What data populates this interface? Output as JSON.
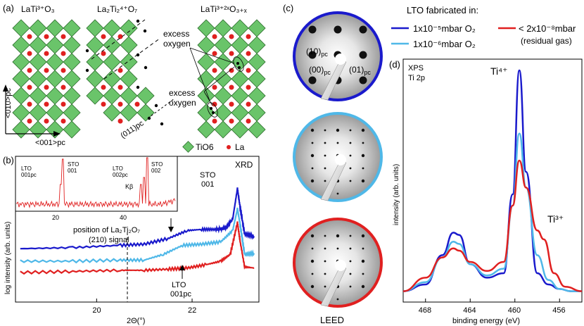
{
  "panels": {
    "a": {
      "label": "(a)",
      "struct1_title": "LaTi³⁺O₃",
      "struct2_title": "La₂Ti₂⁴⁺O₇",
      "struct3_title": "LaTi³⁺²ˣO₃₊ₓ",
      "excess_oxygen_top": [
        "excess",
        "oxygen"
      ],
      "excess_oxygen_bottom": [
        "excess",
        "oxygen"
      ],
      "axis_y": "<010>pc",
      "axis_x": "<001>pc",
      "plane": "(011)pc",
      "legend_tio6": "TiO6",
      "legend_la": "La"
    },
    "b": {
      "label": "(b)",
      "title": "XRD",
      "ylabel": "log intensity (arb. units)",
      "xlabel": "2Θ(°)",
      "annotations": {
        "sto_main": [
          "STO",
          "001"
        ],
        "position_note": [
          "position of La₂Ti₂O₇",
          "(210) signal"
        ],
        "lto": [
          "LTO",
          "001pc"
        ]
      },
      "inset": {
        "labels": [
          "LTO 001pc",
          "STO 001",
          "LTO 002pc",
          "Kβ",
          "STO 002"
        ],
        "x_ticks": [
          "20",
          "40"
        ]
      }
    },
    "c": {
      "label": "(c)",
      "leed_label": "LEED",
      "spot_labels": [
        "(10)pc",
        "(00)pc",
        "(01)pc"
      ],
      "legend_title": "LTO fabricated in:",
      "legend": [
        {
          "text": "1x10⁻⁵mbar O₂",
          "color": "#1a1acc"
        },
        {
          "text": "1x10⁻⁶mbar O₂",
          "color": "#4fb8e8"
        },
        {
          "text": "< 2x10⁻⁸mbar",
          "sub": "(residual gas)",
          "color": "#e02020"
        }
      ]
    },
    "d": {
      "label": "(d)",
      "method": [
        "XPS",
        "Ti 2p"
      ],
      "peak_ti4": "Ti⁴⁺",
      "peak_ti3": "Ti³⁺",
      "ylabel": "intensity (arb. units)",
      "xlabel": "binding energy (eV)"
    }
  },
  "chart_data": [
    {
      "type": "line",
      "panel": "b",
      "title": "XRD",
      "xlabel": "2Θ(°)",
      "ylabel": "log intensity (arb. units)",
      "xlim": [
        18.3,
        23.4
      ],
      "x_ticks": [
        20,
        22
      ],
      "log_y": true,
      "series": [
        {
          "name": "1x10⁻⁵mbar O₂",
          "color": "#1a1acc",
          "x": [
            18.4,
            19.5,
            20.5,
            21.0,
            21.5,
            21.9,
            22.2,
            22.5,
            22.7,
            22.85,
            22.95,
            23.0,
            23.1,
            23.3
          ],
          "y": [
            0.47,
            0.48,
            0.5,
            0.51,
            0.56,
            0.63,
            0.64,
            0.64,
            0.65,
            0.73,
            1.0,
            0.85,
            0.6,
            0.58
          ]
        },
        {
          "name": "1x10⁻⁶mbar O₂",
          "color": "#4fb8e8",
          "x": [
            18.4,
            19.5,
            20.5,
            21.0,
            21.4,
            21.8,
            22.2,
            22.6,
            22.85,
            22.95,
            23.0,
            23.1,
            23.3
          ],
          "y": [
            0.36,
            0.36,
            0.37,
            0.37,
            0.42,
            0.5,
            0.51,
            0.53,
            0.63,
            0.82,
            0.7,
            0.42,
            0.43
          ]
        },
        {
          "name": "< 2x10⁻⁸mbar",
          "color": "#e02020",
          "x": [
            18.4,
            19.5,
            20.5,
            21.0,
            21.5,
            21.9,
            22.3,
            22.6,
            22.8,
            22.95,
            23.0,
            23.1,
            23.3
          ],
          "y": [
            0.26,
            0.27,
            0.28,
            0.28,
            0.29,
            0.3,
            0.33,
            0.36,
            0.42,
            0.7,
            0.55,
            0.31,
            0.3
          ]
        }
      ]
    },
    {
      "type": "line",
      "panel": "d",
      "xlabel": "binding energy (eV)",
      "ylabel": "intensity (arb. units)",
      "xlim": [
        470,
        454
      ],
      "x_ticks": [
        468,
        464,
        460,
        456
      ],
      "series": [
        {
          "name": "1x10⁻⁵mbar O₂",
          "color": "#1a1acc",
          "x": [
            470,
            468,
            466.5,
            465.5,
            465.0,
            464.0,
            462.5,
            461.0,
            460.2,
            459.6,
            459.0,
            458.0,
            457.0,
            456.0,
            455.0,
            454.0
          ],
          "y": [
            0.02,
            0.05,
            0.18,
            0.28,
            0.27,
            0.14,
            0.08,
            0.1,
            0.45,
            1.0,
            0.55,
            0.1,
            0.05,
            0.03,
            0.02,
            0.02
          ]
        },
        {
          "name": "1x10⁻⁶mbar O₂",
          "color": "#4fb8e8",
          "x": [
            470,
            468,
            466.5,
            465.5,
            465.0,
            464.0,
            462.5,
            461.0,
            460.2,
            459.6,
            459.0,
            458.0,
            457.0,
            456.0,
            455.0,
            454.0
          ],
          "y": [
            0.02,
            0.06,
            0.17,
            0.24,
            0.23,
            0.14,
            0.09,
            0.12,
            0.4,
            0.72,
            0.48,
            0.18,
            0.07,
            0.03,
            0.02,
            0.02
          ]
        },
        {
          "name": "< 2x10⁻⁸mbar",
          "color": "#e02020",
          "x": [
            470,
            468,
            466.5,
            465.5,
            465.0,
            464.0,
            462.5,
            461.0,
            460.2,
            459.6,
            459.0,
            458.0,
            457.4,
            456.5,
            455.5,
            454.0
          ],
          "y": [
            0.02,
            0.08,
            0.17,
            0.21,
            0.2,
            0.15,
            0.11,
            0.15,
            0.4,
            0.6,
            0.48,
            0.29,
            0.25,
            0.1,
            0.04,
            0.02
          ]
        }
      ]
    }
  ]
}
